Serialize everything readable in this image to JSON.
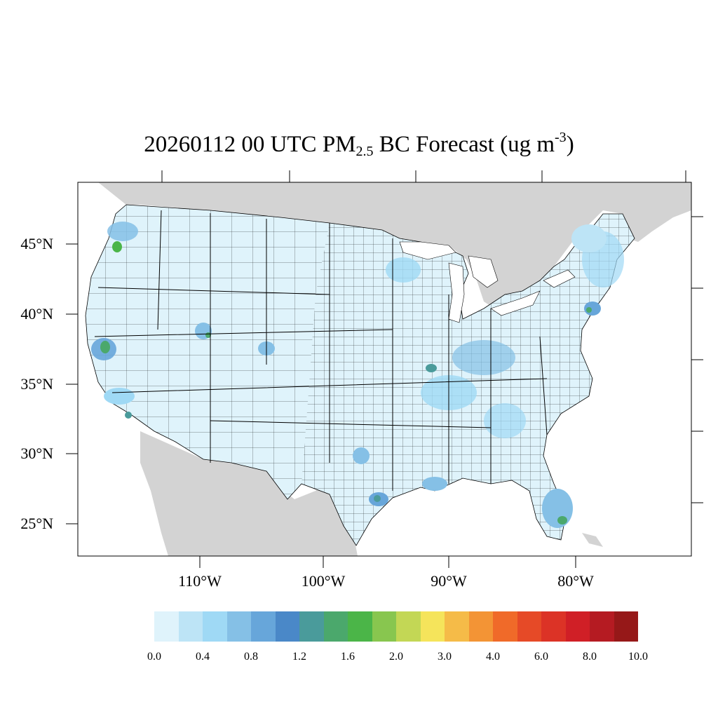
{
  "title": {
    "prefix": "20260112 00 UTC PM",
    "subscript": "2.5",
    "middle": " BC Forecast (ug m",
    "superscript": "-3",
    "suffix": ")"
  },
  "lat_labels": [
    "45°N",
    "40°N",
    "35°N",
    "30°N",
    "25°N"
  ],
  "lon_labels": [
    "110°W",
    "100°W",
    "90°W",
    "80°W"
  ],
  "colorbar": {
    "colors": [
      "#dff3fb",
      "#bde4f6",
      "#9fd9f5",
      "#85c0e6",
      "#67a6da",
      "#4a88c8",
      "#4a9b9b",
      "#4ba86c",
      "#4bb548",
      "#88c64f",
      "#c3d755",
      "#f5e45b",
      "#f5bb48",
      "#f39435",
      "#f06a29",
      "#e64a27",
      "#dc3326",
      "#d01f26",
      "#b51b22",
      "#961818"
    ],
    "labels": [
      "0.0",
      "0.4",
      "0.8",
      "1.2",
      "1.6",
      "2.0",
      "3.0",
      "4.0",
      "6.0",
      "8.0",
      "10.0"
    ]
  },
  "colors": {
    "land_outside_conus": "#d3d3d3",
    "conus_base": "#dff3fb",
    "boundary": "#000000"
  }
}
